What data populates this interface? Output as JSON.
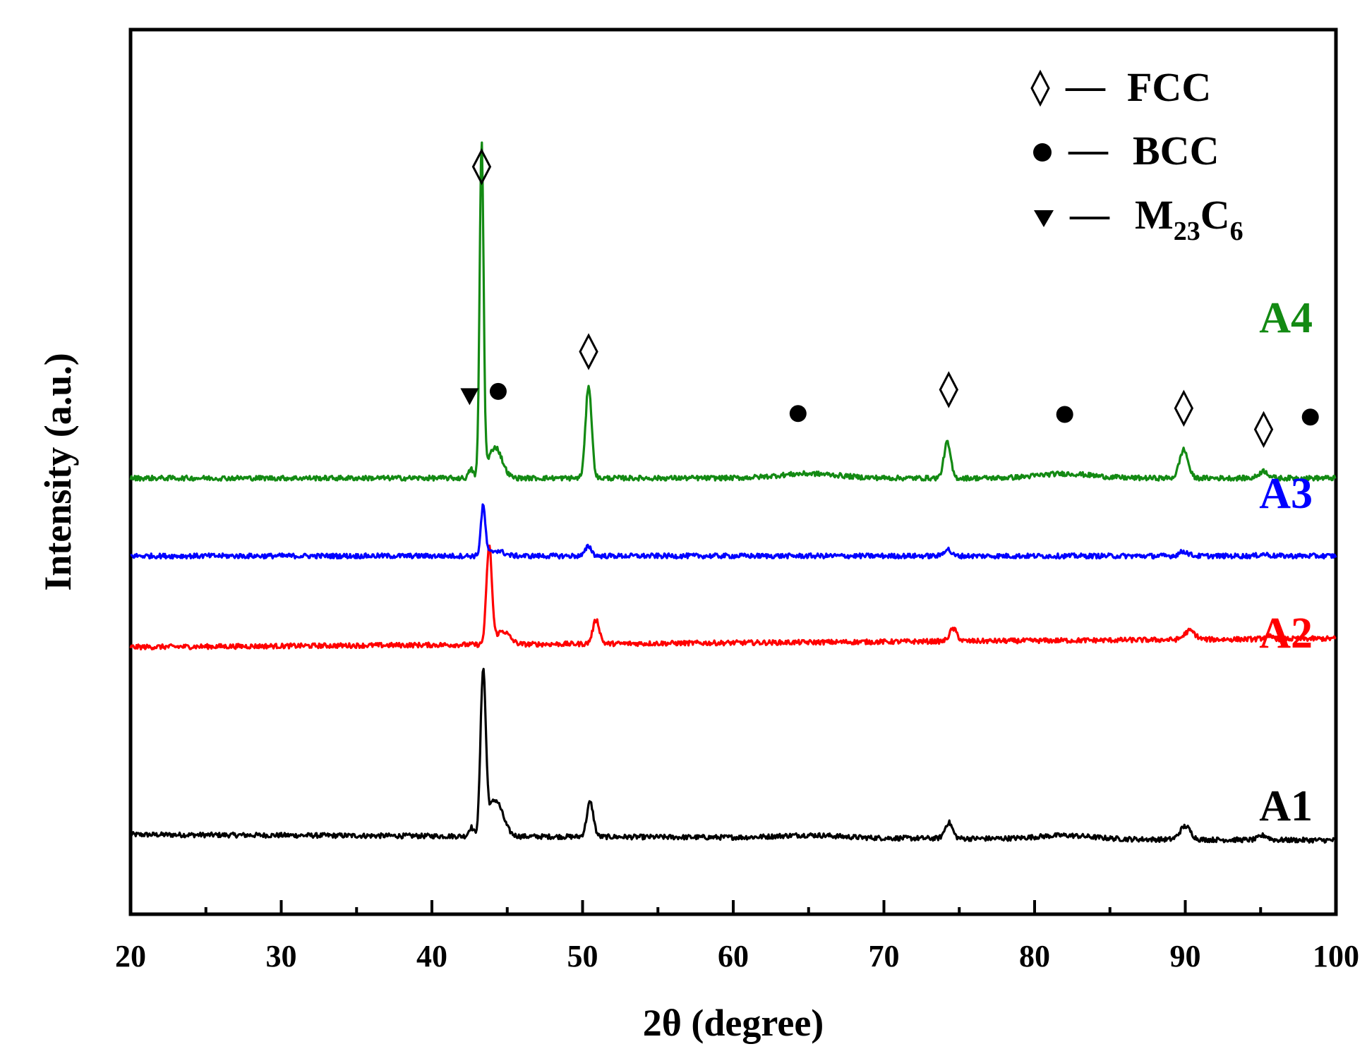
{
  "chart_data": {
    "type": "line",
    "xlabel": "2θ (degree)",
    "ylabel": "Intensity (a.u.)",
    "xlim": [
      20,
      100
    ],
    "ylim": [
      0,
      100
    ],
    "x_major_ticks": [
      20,
      30,
      40,
      50,
      60,
      70,
      80,
      90,
      100
    ],
    "x_minor_ticks": [
      25,
      35,
      45,
      55,
      65,
      75,
      85,
      95
    ],
    "y_ticks_shown": false,
    "grid": false,
    "legend": {
      "placement": "top-right",
      "entries": [
        {
          "marker": "diamond-open",
          "dash": "—",
          "label": "FCC"
        },
        {
          "marker": "circle-filled",
          "dash": "—",
          "label": "BCC"
        },
        {
          "marker": "triangle-down-filled",
          "dash": "—",
          "label_main": "M",
          "label_sub1": "23",
          "label_mid": "C",
          "label_sub2": "6"
        }
      ]
    },
    "series": [
      {
        "name": "A1",
        "color": "#000000",
        "baseline": 9.0,
        "slope": -0.008,
        "peaks": [
          {
            "x": 42.6,
            "h": 1.0,
            "w": 0.15
          },
          {
            "x": 43.4,
            "h": 18.0,
            "w": 0.17
          },
          {
            "x": 44.2,
            "h": 4.1,
            "w": 0.5
          },
          {
            "x": 50.5,
            "h": 3.9,
            "w": 0.22
          },
          {
            "x": 65.0,
            "h": 0.3,
            "w": 2.0
          },
          {
            "x": 74.3,
            "h": 1.8,
            "w": 0.25
          },
          {
            "x": 82.0,
            "h": 0.4,
            "w": 1.8
          },
          {
            "x": 90.0,
            "h": 1.5,
            "w": 0.35
          },
          {
            "x": 95.2,
            "h": 0.5,
            "w": 0.3
          }
        ]
      },
      {
        "name": "A2",
        "color": "#ff0000",
        "baseline": 30.2,
        "slope": 0.012,
        "peaks": [
          {
            "x": 43.8,
            "h": 11.0,
            "w": 0.18
          },
          {
            "x": 44.7,
            "h": 1.5,
            "w": 0.45
          },
          {
            "x": 50.9,
            "h": 2.7,
            "w": 0.22
          },
          {
            "x": 74.6,
            "h": 1.4,
            "w": 0.25
          },
          {
            "x": 90.3,
            "h": 1.0,
            "w": 0.35
          },
          {
            "x": 95.5,
            "h": 0.3,
            "w": 0.3
          }
        ]
      },
      {
        "name": "A3",
        "color": "#0000ff",
        "baseline": 40.5,
        "slope": 0.0,
        "peaks": [
          {
            "x": 43.4,
            "h": 5.6,
            "w": 0.15
          },
          {
            "x": 44.3,
            "h": 0.6,
            "w": 0.45
          },
          {
            "x": 50.4,
            "h": 1.1,
            "w": 0.2
          },
          {
            "x": 74.2,
            "h": 0.8,
            "w": 0.22
          },
          {
            "x": 89.9,
            "h": 0.5,
            "w": 0.3
          },
          {
            "x": 95.2,
            "h": 0.2,
            "w": 0.3
          }
        ]
      },
      {
        "name": "A4",
        "color": "#138a13",
        "baseline": 49.3,
        "slope": 0.0,
        "peaks": [
          {
            "x": 42.6,
            "h": 1.0,
            "w": 0.15
          },
          {
            "x": 43.3,
            "h": 37.5,
            "w": 0.13
          },
          {
            "x": 44.2,
            "h": 3.5,
            "w": 0.45
          },
          {
            "x": 50.4,
            "h": 10.5,
            "w": 0.2
          },
          {
            "x": 65.0,
            "h": 0.5,
            "w": 2.0
          },
          {
            "x": 74.2,
            "h": 4.0,
            "w": 0.22
          },
          {
            "x": 82.0,
            "h": 0.5,
            "w": 1.8
          },
          {
            "x": 89.9,
            "h": 3.2,
            "w": 0.28
          },
          {
            "x": 95.2,
            "h": 0.8,
            "w": 0.3
          }
        ]
      }
    ],
    "phase_markers": [
      {
        "type": "diamond-open",
        "x": 43.3,
        "y": 84.5
      },
      {
        "type": "diamond-open",
        "x": 50.4,
        "y": 63.6
      },
      {
        "type": "diamond-open",
        "x": 74.3,
        "y": 59.3
      },
      {
        "type": "diamond-open",
        "x": 89.9,
        "y": 57.2
      },
      {
        "type": "diamond-open",
        "x": 95.2,
        "y": 54.8
      },
      {
        "type": "circle-filled",
        "x": 44.4,
        "y": 59.1
      },
      {
        "type": "circle-filled",
        "x": 64.3,
        "y": 56.6
      },
      {
        "type": "circle-filled",
        "x": 82.0,
        "y": 56.5
      },
      {
        "type": "circle-filled",
        "x": 98.3,
        "y": 56.2
      },
      {
        "type": "triangle-down-filled",
        "x": 42.5,
        "y": 58.5
      }
    ]
  }
}
